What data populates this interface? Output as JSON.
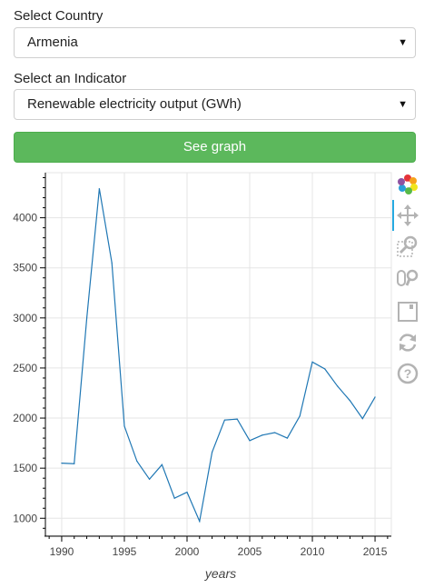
{
  "form": {
    "country_label": "Select Country",
    "country_value": "Armenia",
    "indicator_label": "Select an Indicator",
    "indicator_value": "Renewable electricity output (GWh)",
    "submit_label": "See graph"
  },
  "colors": {
    "button_green": "#5cb85c",
    "line_blue": "#1f77b4",
    "toolbar_active": "#26aae1",
    "grid": "#e5e5e5"
  },
  "toolbar": {
    "tools": [
      "bokeh-logo-icon",
      "pan-icon",
      "box-zoom-icon",
      "wheel-zoom-icon",
      "save-icon",
      "reset-icon",
      "help-icon"
    ]
  },
  "chart_data": {
    "type": "line",
    "xlabel": "years",
    "ylabel": "",
    "title": "",
    "xlim": [
      1988.7,
      2016.3
    ],
    "ylim": [
      830,
      4450
    ],
    "x_ticks": [
      1990,
      1995,
      2000,
      2005,
      2010,
      2015
    ],
    "y_ticks": [
      1000,
      1500,
      2000,
      2500,
      3000,
      3500,
      4000
    ],
    "grid": true,
    "series": [
      {
        "x": [
          1990,
          1991,
          1992,
          1993,
          1994,
          1995,
          1996,
          1997,
          1998,
          1999,
          2000,
          2001,
          2002,
          2003,
          2004,
          2005,
          2006,
          2007,
          2008,
          2009,
          2010,
          2011,
          2012,
          2013,
          2014,
          2015
        ],
        "values": [
          1550,
          1545,
          3000,
          4290,
          3550,
          1920,
          1570,
          1390,
          1535,
          1200,
          1260,
          970,
          1660,
          1980,
          1990,
          1775,
          1830,
          1855,
          1800,
          2020,
          2560,
          2490,
          2320,
          2175,
          1995,
          2210
        ]
      }
    ]
  }
}
